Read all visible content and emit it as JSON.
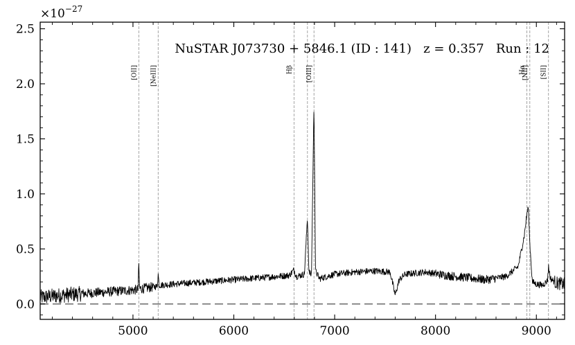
{
  "chart_data": {
    "type": "line",
    "title": "NuSTAR J073730 + 5846.1 (ID : 141)   z = 0.357   Run : 12",
    "y_multiplier": "×10",
    "y_exponent": "−27",
    "xlabel": "",
    "ylabel": "",
    "xlim": [
      4080,
      9280
    ],
    "ylim": [
      -0.14,
      2.56
    ],
    "x_ticks": [
      5000,
      6000,
      7000,
      8000,
      9000
    ],
    "y_ticks": [
      0.0,
      0.5,
      1.0,
      1.5,
      2.0,
      2.5
    ],
    "y_tick_labels": [
      "0.0",
      "0.5",
      "1.0",
      "1.5",
      "2.0",
      "2.5"
    ],
    "zero_line": 0.0,
    "grid": false,
    "emission_lines": [
      {
        "label": "[OII]",
        "x": 5058
      },
      {
        "label": "[NeIII]",
        "x": 5250
      },
      {
        "label": "Hβ",
        "x": 6597
      },
      {
        "label": "",
        "x": 6730
      },
      {
        "label": "[OIII]",
        "x": 6795
      },
      {
        "label": "Hα",
        "x": 8906
      },
      {
        "label": "[NII]",
        "x": 8935
      },
      {
        "label": "[SII]",
        "x": 9120
      }
    ],
    "series": [
      {
        "x": [
          4080,
          4300,
          4600,
          4900,
          5050,
          5058,
          5066,
          5100,
          5240,
          5250,
          5260,
          5400,
          5700,
          6000,
          6300,
          6550,
          6597,
          6620,
          6700,
          6730,
          6745,
          6770,
          6795,
          6810,
          6850,
          7000,
          7200,
          7400,
          7550,
          7600,
          7640,
          7700,
          7800,
          7900,
          8100,
          8300,
          8500,
          8700,
          8820,
          8880,
          8906,
          8920,
          8935,
          8960,
          9000,
          9060,
          9110,
          9120,
          9140,
          9200,
          9280
        ],
        "y": [
          0.06,
          0.08,
          0.1,
          0.12,
          0.13,
          0.36,
          0.14,
          0.14,
          0.16,
          0.27,
          0.17,
          0.18,
          0.2,
          0.22,
          0.24,
          0.26,
          0.31,
          0.25,
          0.27,
          0.79,
          0.29,
          0.26,
          1.84,
          0.3,
          0.23,
          0.27,
          0.29,
          0.3,
          0.29,
          0.08,
          0.22,
          0.27,
          0.28,
          0.29,
          0.26,
          0.24,
          0.22,
          0.25,
          0.34,
          0.62,
          0.82,
          0.88,
          0.55,
          0.2,
          0.18,
          0.17,
          0.21,
          0.34,
          0.23,
          0.19,
          0.18
        ]
      }
    ]
  }
}
